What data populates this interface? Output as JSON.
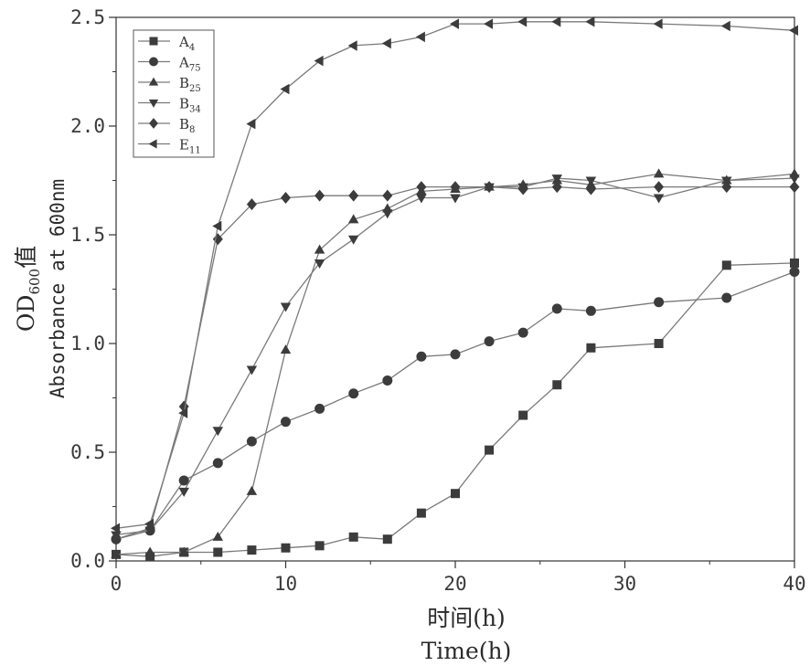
{
  "chart_data": {
    "type": "line",
    "xlabel_cn": "时间(h)",
    "xlabel_en": "Time(h)",
    "ylabel_cn": {
      "base": "OD",
      "sub": "600",
      "suffix": "值"
    },
    "ylabel_en": "Absorbance at 600nm",
    "xlim": [
      0,
      40
    ],
    "ylim": [
      0,
      2.5
    ],
    "x_ticks": [
      "0",
      "10",
      "20",
      "30",
      "40"
    ],
    "y_ticks": [
      "0.0",
      "0.5",
      "1.0",
      "1.5",
      "2.0",
      "2.5"
    ],
    "legend_position": "top-left",
    "grid": false,
    "series": [
      {
        "name": {
          "base": "A",
          "sub": "4"
        },
        "marker": "square",
        "x": [
          0,
          2,
          4,
          6,
          8,
          10,
          12,
          14,
          16,
          18,
          20,
          22,
          24,
          26,
          28,
          32,
          36,
          40
        ],
        "y": [
          0.03,
          0.02,
          0.04,
          0.04,
          0.05,
          0.06,
          0.07,
          0.11,
          0.1,
          0.22,
          0.31,
          0.51,
          0.67,
          0.81,
          0.98,
          1.0,
          1.36,
          1.37
        ]
      },
      {
        "name": {
          "base": "A",
          "sub": "75"
        },
        "marker": "circle",
        "x": [
          0,
          2,
          4,
          6,
          8,
          10,
          12,
          14,
          16,
          18,
          20,
          22,
          24,
          26,
          28,
          32,
          36,
          40
        ],
        "y": [
          0.1,
          0.14,
          0.37,
          0.45,
          0.55,
          0.64,
          0.7,
          0.77,
          0.83,
          0.94,
          0.95,
          1.01,
          1.05,
          1.16,
          1.15,
          1.19,
          1.21,
          1.33
        ]
      },
      {
        "name": {
          "base": "B",
          "sub": "25"
        },
        "marker": "triangle-up",
        "x": [
          0,
          2,
          4,
          6,
          8,
          10,
          12,
          14,
          16,
          18,
          20,
          22,
          24,
          26,
          28,
          32,
          36,
          40
        ],
        "y": [
          0.03,
          0.04,
          0.04,
          0.11,
          0.32,
          0.97,
          1.43,
          1.57,
          1.62,
          1.7,
          1.71,
          1.72,
          1.73,
          1.75,
          1.73,
          1.78,
          1.75,
          1.78
        ]
      },
      {
        "name": {
          "base": "B",
          "sub": "34"
        },
        "marker": "triangle-down",
        "x": [
          0,
          2,
          4,
          6,
          8,
          10,
          12,
          14,
          16,
          18,
          20,
          22,
          24,
          26,
          28,
          32,
          36,
          40
        ],
        "y": [
          0.12,
          0.14,
          0.32,
          0.6,
          0.88,
          1.17,
          1.37,
          1.48,
          1.6,
          1.67,
          1.67,
          1.72,
          1.72,
          1.76,
          1.75,
          1.67,
          1.75,
          1.76
        ]
      },
      {
        "name": {
          "base": "B",
          "sub": "8"
        },
        "marker": "diamond",
        "x": [
          0,
          2,
          4,
          6,
          8,
          10,
          12,
          14,
          16,
          18,
          20,
          22,
          24,
          26,
          28,
          32,
          36,
          40
        ],
        "y": [
          0.1,
          0.15,
          0.71,
          1.48,
          1.64,
          1.67,
          1.68,
          1.68,
          1.68,
          1.72,
          1.72,
          1.72,
          1.71,
          1.72,
          1.71,
          1.72,
          1.72,
          1.72
        ]
      },
      {
        "name": {
          "base": "E",
          "sub": "11"
        },
        "marker": "triangle-left",
        "x": [
          0,
          2,
          4,
          6,
          8,
          10,
          12,
          14,
          16,
          18,
          20,
          22,
          24,
          26,
          28,
          32,
          36,
          40
        ],
        "y": [
          0.15,
          0.17,
          0.68,
          1.54,
          2.01,
          2.17,
          2.3,
          2.37,
          2.38,
          2.41,
          2.47,
          2.47,
          2.48,
          2.48,
          2.48,
          2.47,
          2.46,
          2.44
        ]
      }
    ]
  }
}
